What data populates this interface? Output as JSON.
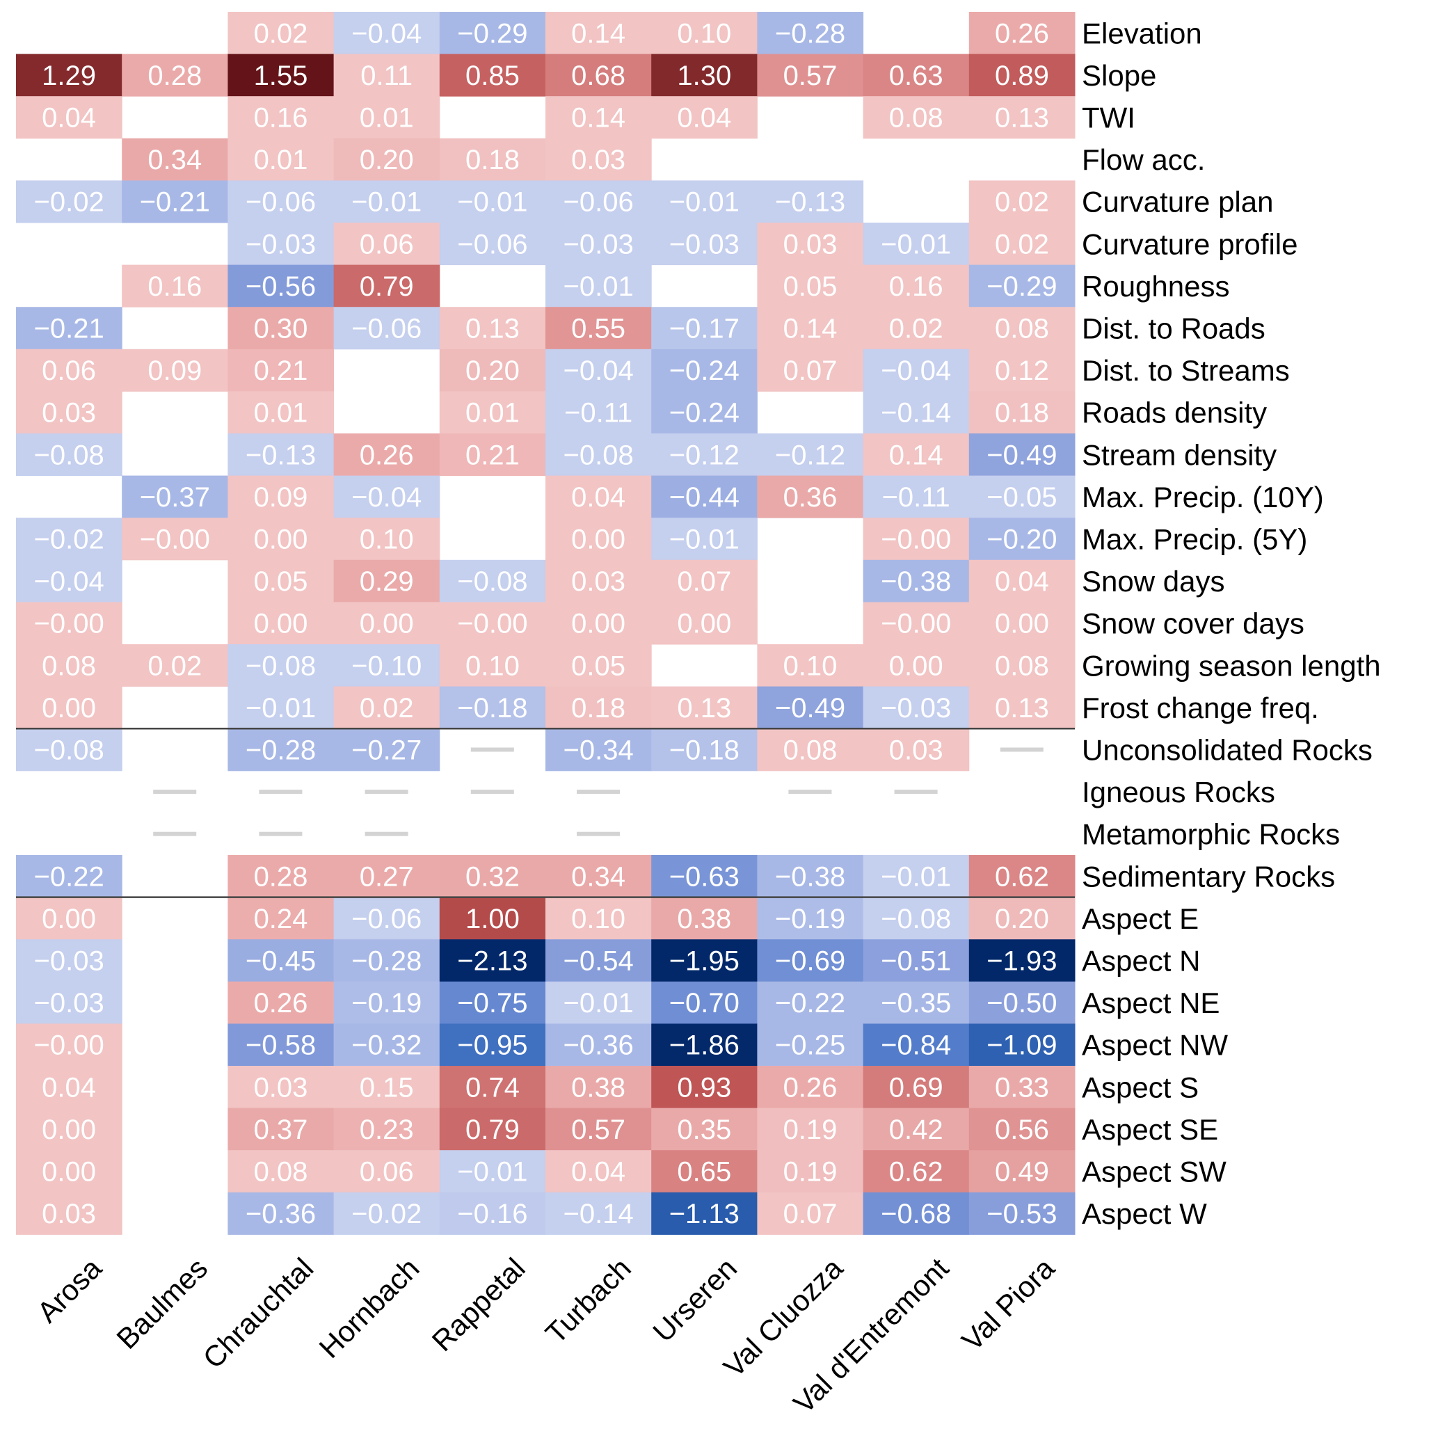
{
  "chart_data": {
    "type": "heatmap",
    "title": "",
    "colormap": "diverging red (positive) / blue (negative), white = no value",
    "columns": [
      "Arosa",
      "Baulmes",
      "Chrauchtal",
      "Hornbach",
      "Rappetal",
      "Turbach",
      "Urseren",
      "Val Cluozza",
      "Val d'Entremont",
      "Val Piora"
    ],
    "rows": [
      {
        "label": "Elevation",
        "values": [
          null,
          null,
          0.02,
          -0.04,
          -0.29,
          0.14,
          0.1,
          -0.28,
          null,
          0.26
        ]
      },
      {
        "label": "Slope",
        "values": [
          1.29,
          0.28,
          1.55,
          0.11,
          0.85,
          0.68,
          1.3,
          0.57,
          0.63,
          0.89
        ]
      },
      {
        "label": "TWI",
        "values": [
          0.04,
          null,
          0.16,
          0.01,
          null,
          0.14,
          0.04,
          null,
          0.08,
          0.13
        ]
      },
      {
        "label": "Flow acc.",
        "values": [
          null,
          0.34,
          0.01,
          0.2,
          0.18,
          0.03,
          null,
          null,
          null,
          null
        ]
      },
      {
        "label": "Curvature plan",
        "values": [
          -0.02,
          -0.21,
          -0.06,
          -0.01,
          -0.01,
          -0.06,
          -0.01,
          -0.13,
          null,
          0.02
        ]
      },
      {
        "label": "Curvature profile",
        "values": [
          null,
          null,
          -0.03,
          0.06,
          -0.06,
          -0.03,
          -0.03,
          0.03,
          -0.01,
          0.02
        ]
      },
      {
        "label": "Roughness",
        "values": [
          null,
          0.16,
          -0.56,
          0.79,
          null,
          -0.01,
          null,
          0.05,
          0.16,
          -0.29
        ]
      },
      {
        "label": "Dist. to Roads",
        "values": [
          -0.21,
          null,
          0.3,
          -0.06,
          0.13,
          0.55,
          -0.17,
          0.14,
          0.02,
          0.08
        ]
      },
      {
        "label": "Dist. to Streams",
        "values": [
          0.06,
          0.09,
          0.21,
          null,
          0.2,
          -0.04,
          -0.24,
          0.07,
          -0.04,
          0.12
        ]
      },
      {
        "label": "Roads density",
        "values": [
          0.03,
          null,
          0.01,
          null,
          0.01,
          -0.11,
          -0.24,
          null,
          -0.14,
          0.18
        ]
      },
      {
        "label": "Stream density",
        "values": [
          -0.08,
          null,
          -0.13,
          0.26,
          0.21,
          -0.08,
          -0.12,
          -0.12,
          0.14,
          -0.49
        ]
      },
      {
        "label": "Max. Precip. (10Y)",
        "values": [
          null,
          -0.37,
          0.09,
          -0.04,
          null,
          0.04,
          -0.44,
          0.36,
          -0.11,
          -0.05
        ]
      },
      {
        "label": "Max. Precip. (5Y)",
        "values": [
          -0.02,
          "-0.00",
          0.0,
          0.1,
          null,
          0.0,
          -0.01,
          null,
          "-0.00",
          -0.2
        ]
      },
      {
        "label": "Snow days",
        "values": [
          -0.04,
          null,
          0.05,
          0.29,
          -0.08,
          0.03,
          0.07,
          null,
          -0.38,
          0.04
        ]
      },
      {
        "label": "Snow cover days",
        "values": [
          "-0.00",
          null,
          0.0,
          0.0,
          "-0.00",
          0.0,
          0.0,
          null,
          "-0.00",
          0.0
        ]
      },
      {
        "label": "Growing season length",
        "values": [
          0.08,
          0.02,
          -0.08,
          -0.1,
          0.1,
          0.05,
          null,
          0.1,
          0.0,
          0.08
        ]
      },
      {
        "label": "Frost change freq.",
        "values": [
          0.0,
          null,
          -0.01,
          0.02,
          -0.18,
          0.18,
          0.13,
          -0.49,
          -0.03,
          0.13
        ]
      },
      {
        "label": "Unconsolidated Rocks",
        "values": [
          -0.08,
          null,
          -0.28,
          -0.27,
          "ref",
          -0.34,
          -0.18,
          0.08,
          0.03,
          "ref"
        ]
      },
      {
        "label": "Igneous Rocks",
        "values": [
          null,
          "ref",
          "ref",
          "ref",
          "ref",
          "ref",
          null,
          "ref",
          "ref",
          null
        ]
      },
      {
        "label": "Metamorphic Rocks",
        "values": [
          null,
          "ref",
          "ref",
          "ref",
          null,
          "ref",
          null,
          null,
          null,
          null
        ]
      },
      {
        "label": "Sedimentary Rocks",
        "values": [
          -0.22,
          null,
          0.28,
          0.27,
          0.32,
          0.34,
          -0.63,
          -0.38,
          -0.01,
          0.62
        ]
      },
      {
        "label": "Aspect E",
        "values": [
          0.0,
          null,
          0.24,
          -0.06,
          1.0,
          0.1,
          0.38,
          -0.19,
          -0.08,
          0.2
        ]
      },
      {
        "label": "Aspect N",
        "values": [
          -0.03,
          null,
          -0.45,
          -0.28,
          -2.13,
          -0.54,
          -1.95,
          -0.69,
          -0.51,
          -1.93
        ]
      },
      {
        "label": "Aspect NE",
        "values": [
          -0.03,
          null,
          0.26,
          -0.19,
          -0.75,
          -0.01,
          -0.7,
          -0.22,
          -0.35,
          -0.5
        ]
      },
      {
        "label": "Aspect NW",
        "values": [
          "-0.00",
          null,
          -0.58,
          -0.32,
          -0.95,
          -0.36,
          -1.86,
          -0.25,
          -0.84,
          -1.09
        ]
      },
      {
        "label": "Aspect S",
        "values": [
          0.04,
          null,
          0.03,
          0.15,
          0.74,
          0.38,
          0.93,
          0.26,
          0.69,
          0.33
        ]
      },
      {
        "label": "Aspect SE",
        "values": [
          0.0,
          null,
          0.37,
          0.23,
          0.79,
          0.57,
          0.35,
          0.19,
          0.42,
          0.56
        ]
      },
      {
        "label": "Aspect SW",
        "values": [
          0.0,
          null,
          0.08,
          0.06,
          -0.01,
          0.04,
          0.65,
          0.19,
          0.62,
          0.49
        ]
      },
      {
        "label": "Aspect W",
        "values": [
          0.03,
          null,
          -0.36,
          -0.02,
          -0.16,
          -0.14,
          -1.13,
          0.07,
          -0.68,
          -0.53
        ]
      }
    ],
    "group_separators_after_rows": [
      "Frost change freq.",
      "Sedimentary Rocks"
    ],
    "legend": "none",
    "notes": "'ref' cells are drawn as a short grey dash (reference category); null cells are blank"
  }
}
